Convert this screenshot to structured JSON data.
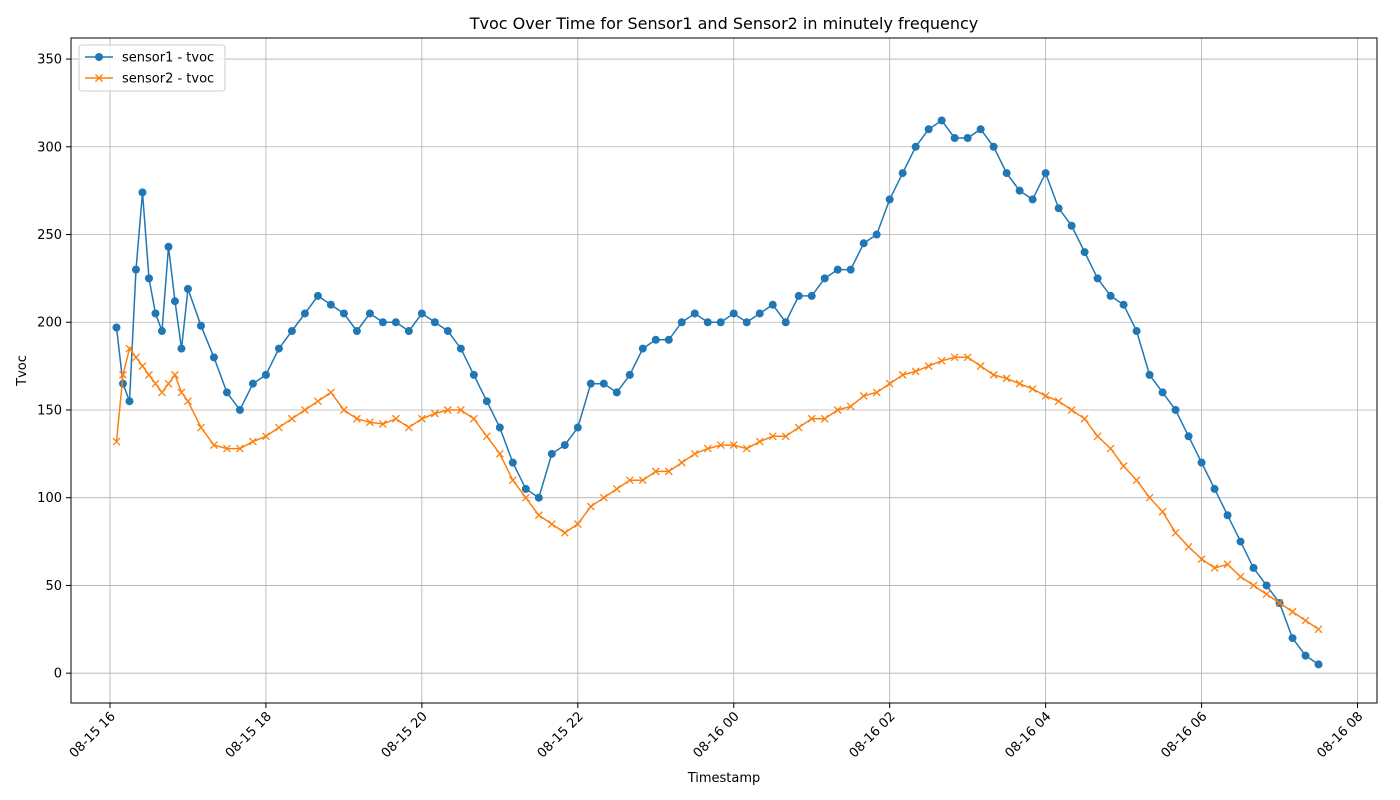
{
  "chart_data": {
    "type": "line",
    "title": "Tvoc Over Time for Sensor1 and Sensor2 in minutely frequency",
    "xlabel": "Timestamp",
    "ylabel": "Tvoc",
    "x_range": [
      "2023-08-15 15:30",
      "2023-08-16 08:15"
    ],
    "ylim": [
      -17,
      362
    ],
    "grid": true,
    "legend_position": "top-left",
    "x_ticks": [
      "08-15 16",
      "08-15 18",
      "08-15 20",
      "08-15 22",
      "08-16 00",
      "08-16 02",
      "08-16 04",
      "08-16 06",
      "08-16 08"
    ],
    "y_ticks": [
      0,
      50,
      100,
      150,
      200,
      250,
      300,
      350
    ],
    "series": [
      {
        "name": "sensor1 - tvoc",
        "color": "#1f77b4",
        "marker": "circle",
        "x": [
          "2023-08-15 16:05",
          "2023-08-15 16:10",
          "2023-08-15 16:15",
          "2023-08-15 16:20",
          "2023-08-15 16:25",
          "2023-08-15 16:30",
          "2023-08-15 16:35",
          "2023-08-15 16:40",
          "2023-08-15 16:45",
          "2023-08-15 16:50",
          "2023-08-15 16:55",
          "2023-08-15 17:00",
          "2023-08-15 17:10",
          "2023-08-15 17:20",
          "2023-08-15 17:30",
          "2023-08-15 17:40",
          "2023-08-15 17:50",
          "2023-08-15 18:00",
          "2023-08-15 18:10",
          "2023-08-15 18:20",
          "2023-08-15 18:30",
          "2023-08-15 18:40",
          "2023-08-15 18:50",
          "2023-08-15 19:00",
          "2023-08-15 19:10",
          "2023-08-15 19:20",
          "2023-08-15 19:30",
          "2023-08-15 19:40",
          "2023-08-15 19:50",
          "2023-08-15 20:00",
          "2023-08-15 20:10",
          "2023-08-15 20:20",
          "2023-08-15 20:30",
          "2023-08-15 20:40",
          "2023-08-15 20:50",
          "2023-08-15 21:00",
          "2023-08-15 21:10",
          "2023-08-15 21:20",
          "2023-08-15 21:30",
          "2023-08-15 21:40",
          "2023-08-15 21:50",
          "2023-08-15 22:00",
          "2023-08-15 22:10",
          "2023-08-15 22:20",
          "2023-08-15 22:30",
          "2023-08-15 22:40",
          "2023-08-15 22:50",
          "2023-08-15 23:00",
          "2023-08-15 23:10",
          "2023-08-15 23:20",
          "2023-08-15 23:30",
          "2023-08-15 23:40",
          "2023-08-15 23:50",
          "2023-08-16 00:00",
          "2023-08-16 00:10",
          "2023-08-16 00:20",
          "2023-08-16 00:30",
          "2023-08-16 00:40",
          "2023-08-16 00:50",
          "2023-08-16 01:00",
          "2023-08-16 01:10",
          "2023-08-16 01:20",
          "2023-08-16 01:30",
          "2023-08-16 01:40",
          "2023-08-16 01:50",
          "2023-08-16 02:00",
          "2023-08-16 02:10",
          "2023-08-16 02:20",
          "2023-08-16 02:30",
          "2023-08-16 02:40",
          "2023-08-16 02:50",
          "2023-08-16 03:00",
          "2023-08-16 03:10",
          "2023-08-16 03:20",
          "2023-08-16 03:30",
          "2023-08-16 03:40",
          "2023-08-16 03:50",
          "2023-08-16 04:00",
          "2023-08-16 04:10",
          "2023-08-16 04:20",
          "2023-08-16 04:30",
          "2023-08-16 04:40",
          "2023-08-16 04:50",
          "2023-08-16 05:00",
          "2023-08-16 05:10",
          "2023-08-16 05:20",
          "2023-08-16 05:30",
          "2023-08-16 05:40",
          "2023-08-16 05:50",
          "2023-08-16 06:00",
          "2023-08-16 06:10",
          "2023-08-16 06:20",
          "2023-08-16 06:30",
          "2023-08-16 06:40",
          "2023-08-16 06:50",
          "2023-08-16 07:00",
          "2023-08-16 07:10",
          "2023-08-16 07:20",
          "2023-08-16 07:30"
        ],
        "values": [
          197,
          165,
          155,
          230,
          274,
          225,
          205,
          195,
          243,
          212,
          185,
          219,
          198,
          180,
          160,
          150,
          165,
          170,
          185,
          195,
          205,
          215,
          210,
          205,
          195,
          205,
          200,
          200,
          195,
          205,
          200,
          195,
          185,
          170,
          155,
          140,
          120,
          105,
          100,
          125,
          130,
          140,
          165,
          165,
          160,
          170,
          185,
          190,
          190,
          200,
          205,
          200,
          200,
          205,
          200,
          205,
          210,
          200,
          215,
          215,
          225,
          230,
          230,
          245,
          250,
          270,
          285,
          300,
          310,
          315,
          305,
          305,
          310,
          300,
          285,
          275,
          270,
          285,
          265,
          255,
          240,
          225,
          215,
          210,
          195,
          170,
          160,
          150,
          135,
          120,
          105,
          90,
          75,
          60,
          50,
          40,
          20,
          10,
          5
        ]
      },
      {
        "name": "sensor2 - tvoc",
        "color": "#ff7f0e",
        "marker": "x",
        "x": [
          "2023-08-15 16:05",
          "2023-08-15 16:10",
          "2023-08-15 16:15",
          "2023-08-15 16:20",
          "2023-08-15 16:25",
          "2023-08-15 16:30",
          "2023-08-15 16:35",
          "2023-08-15 16:40",
          "2023-08-15 16:45",
          "2023-08-15 16:50",
          "2023-08-15 16:55",
          "2023-08-15 17:00",
          "2023-08-15 17:10",
          "2023-08-15 17:20",
          "2023-08-15 17:30",
          "2023-08-15 17:40",
          "2023-08-15 17:50",
          "2023-08-15 18:00",
          "2023-08-15 18:10",
          "2023-08-15 18:20",
          "2023-08-15 18:30",
          "2023-08-15 18:40",
          "2023-08-15 18:50",
          "2023-08-15 19:00",
          "2023-08-15 19:10",
          "2023-08-15 19:20",
          "2023-08-15 19:30",
          "2023-08-15 19:40",
          "2023-08-15 19:50",
          "2023-08-15 20:00",
          "2023-08-15 20:10",
          "2023-08-15 20:20",
          "2023-08-15 20:30",
          "2023-08-15 20:40",
          "2023-08-15 20:50",
          "2023-08-15 21:00",
          "2023-08-15 21:10",
          "2023-08-15 21:20",
          "2023-08-15 21:30",
          "2023-08-15 21:40",
          "2023-08-15 21:50",
          "2023-08-15 22:00",
          "2023-08-15 22:10",
          "2023-08-15 22:20",
          "2023-08-15 22:30",
          "2023-08-15 22:40",
          "2023-08-15 22:50",
          "2023-08-15 23:00",
          "2023-08-15 23:10",
          "2023-08-15 23:20",
          "2023-08-15 23:30",
          "2023-08-15 23:40",
          "2023-08-15 23:50",
          "2023-08-16 00:00",
          "2023-08-16 00:10",
          "2023-08-16 00:20",
          "2023-08-16 00:30",
          "2023-08-16 00:40",
          "2023-08-16 00:50",
          "2023-08-16 01:00",
          "2023-08-16 01:10",
          "2023-08-16 01:20",
          "2023-08-16 01:30",
          "2023-08-16 01:40",
          "2023-08-16 01:50",
          "2023-08-16 02:00",
          "2023-08-16 02:10",
          "2023-08-16 02:20",
          "2023-08-16 02:30",
          "2023-08-16 02:40",
          "2023-08-16 02:50",
          "2023-08-16 03:00",
          "2023-08-16 03:10",
          "2023-08-16 03:20",
          "2023-08-16 03:30",
          "2023-08-16 03:40",
          "2023-08-16 03:50",
          "2023-08-16 04:00",
          "2023-08-16 04:10",
          "2023-08-16 04:20",
          "2023-08-16 04:30",
          "2023-08-16 04:40",
          "2023-08-16 04:50",
          "2023-08-16 05:00",
          "2023-08-16 05:10",
          "2023-08-16 05:20",
          "2023-08-16 05:30",
          "2023-08-16 05:40",
          "2023-08-16 05:50",
          "2023-08-16 06:00",
          "2023-08-16 06:10",
          "2023-08-16 06:20",
          "2023-08-16 06:30",
          "2023-08-16 06:40",
          "2023-08-16 06:50",
          "2023-08-16 07:00",
          "2023-08-16 07:10",
          "2023-08-16 07:20",
          "2023-08-16 07:30"
        ],
        "values": [
          132,
          170,
          185,
          180,
          175,
          170,
          165,
          160,
          165,
          170,
          160,
          155,
          140,
          130,
          128,
          128,
          132,
          135,
          140,
          145,
          150,
          155,
          160,
          150,
          145,
          143,
          142,
          145,
          140,
          145,
          148,
          150,
          150,
          145,
          135,
          125,
          110,
          100,
          90,
          85,
          80,
          85,
          95,
          100,
          105,
          110,
          110,
          115,
          115,
          120,
          125,
          128,
          130,
          130,
          128,
          132,
          135,
          135,
          140,
          145,
          145,
          150,
          152,
          158,
          160,
          165,
          170,
          172,
          175,
          178,
          180,
          180,
          175,
          170,
          168,
          165,
          162,
          158,
          155,
          150,
          145,
          135,
          128,
          118,
          110,
          100,
          92,
          80,
          72,
          65,
          60,
          62,
          55,
          50,
          45,
          40,
          35,
          30,
          25
        ]
      }
    ]
  }
}
